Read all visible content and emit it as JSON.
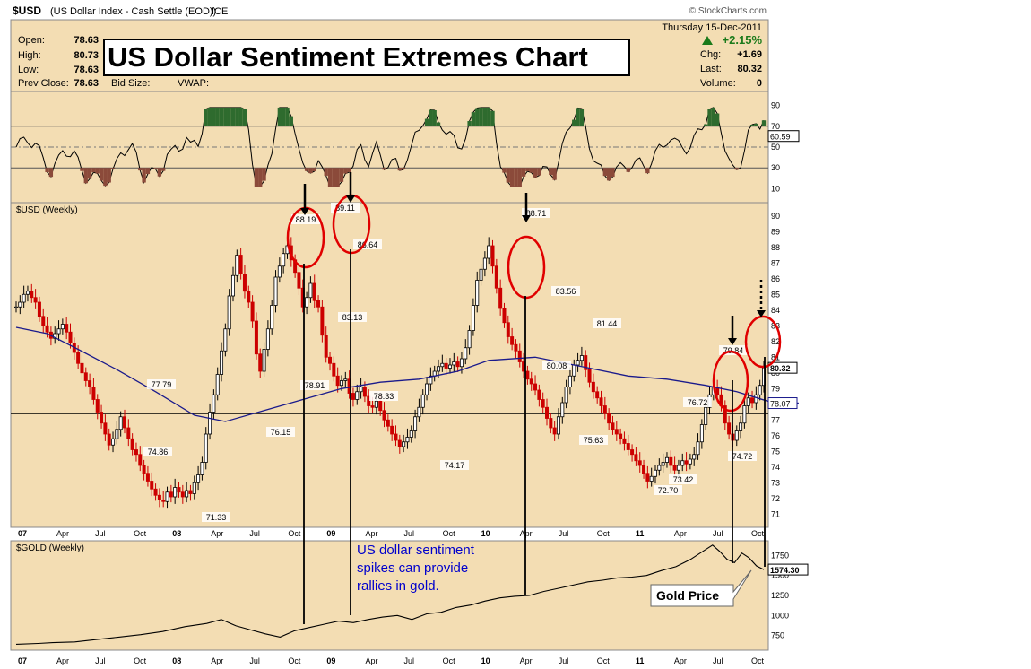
{
  "header": {
    "symbol": "$USD",
    "description": "(US Dollar Index - Cash Settle (EOD))",
    "exchange": "ICE",
    "source": "© StockCharts.com",
    "date": "Thursday 15-Dec-2011"
  },
  "quote": {
    "open_label": "Open:",
    "open": "78.63",
    "high_label": "High:",
    "high": "80.73",
    "low_label": "Low:",
    "low": "78.63",
    "prev_close_label": "Prev Close:",
    "prev_close": "78.63",
    "bid_size_label": "Bid Size:",
    "vwap_label": "VWAP:",
    "change_pct": "+2.15%",
    "chg_label": "Chg:",
    "chg": "+1.69",
    "last_label": "Last:",
    "last": "80.32",
    "volume_label": "Volume:",
    "volume": "0"
  },
  "title": "US Dollar Sentiment Extremes Chart",
  "annotations": {
    "sentiment_note": [
      "US dollar sentiment",
      "spikes can provide",
      "rallies in gold."
    ],
    "gold_callout": "Gold Price"
  },
  "colors": {
    "panel_bg": "#f3ddb3",
    "up_candle": "#000000",
    "down_candle": "#cc0000",
    "moving_average": "#1a1a8c",
    "circle": "#e00000",
    "note_text": "#0000cc",
    "positive": "#1a7a1a"
  },
  "chart_data": {
    "type": "candlestick",
    "time_axis": {
      "labels": [
        "07",
        "Apr",
        "Jul",
        "Oct",
        "08",
        "Apr",
        "Jul",
        "Oct",
        "09",
        "Apr",
        "Jul",
        "Oct",
        "10",
        "Apr",
        "Jul",
        "Oct",
        "11",
        "Apr",
        "Jul",
        "Oct"
      ],
      "bold_labels": [
        "07",
        "08",
        "09",
        "10",
        "11"
      ]
    },
    "indicator_panel": {
      "yticks": [
        10,
        30,
        50,
        70,
        90
      ],
      "ylim": [
        0,
        100
      ],
      "overbought": 70,
      "oversold": 30,
      "last_value": "60.59"
    },
    "price_panel": {
      "label": "$USD (Weekly)",
      "yticks": [
        71,
        72,
        73,
        74,
        75,
        76,
        77,
        78,
        79,
        80,
        81,
        82,
        83,
        84,
        85,
        86,
        87,
        88,
        89,
        90
      ],
      "ylim": [
        70.5,
        90.5
      ],
      "reference_line": 77.4,
      "last_price": "80.32",
      "ma_last": "78.07",
      "labeled_points": [
        {
          "date": "2007-10",
          "value": "77.79"
        },
        {
          "date": "2007-12",
          "value": "74.86"
        },
        {
          "date": "2008-03",
          "value": "71.33"
        },
        {
          "date": "2008-08",
          "value": "76.15"
        },
        {
          "date": "2008-11",
          "value": "88.19"
        },
        {
          "date": "2008-12",
          "value": "78.91"
        },
        {
          "date": "2009-03",
          "value": "89.11"
        },
        {
          "date": "2009-03",
          "value": "83.13"
        },
        {
          "date": "2009-04",
          "value": "86.64"
        },
        {
          "date": "2009-05",
          "value": "78.33"
        },
        {
          "date": "2009-11",
          "value": "74.17"
        },
        {
          "date": "2010-06",
          "value": "88.71"
        },
        {
          "date": "2010-07",
          "value": "83.56"
        },
        {
          "date": "2010-08",
          "value": "80.08"
        },
        {
          "date": "2010-10",
          "value": "75.63"
        },
        {
          "date": "2011-01",
          "value": "81.44"
        },
        {
          "date": "2011-05",
          "value": "72.70"
        },
        {
          "date": "2011-06",
          "value": "76.72"
        },
        {
          "date": "2011-08",
          "value": "73.42"
        },
        {
          "date": "2011-10",
          "value": "79.84"
        },
        {
          "date": "2011-10",
          "value": "74.72"
        }
      ],
      "closes": [
        84.2,
        84.5,
        85,
        85.2,
        84.8,
        84.5,
        83.6,
        83,
        82.6,
        82.2,
        82.5,
        82.8,
        83.1,
        82.6,
        81.9,
        81.3,
        80.6,
        80,
        79.5,
        79.1,
        78.3,
        77.5,
        76.8,
        76.1,
        75.4,
        75.8,
        76.4,
        77.2,
        76.5,
        75.8,
        75.1,
        74.8,
        74.1,
        73.6,
        73.1,
        72.6,
        72.2,
        71.9,
        71.8,
        72.4,
        72.1,
        72.7,
        72.4,
        72.1,
        72.5,
        72.3,
        73,
        73.5,
        74.3,
        76.1,
        77.5,
        78.6,
        79.9,
        81.4,
        82.8,
        84.9,
        86.2,
        87.5,
        86.3,
        85.2,
        84.5,
        83.3,
        81.2,
        80.1,
        81.5,
        82.8,
        84.3,
        86.1,
        86.8,
        87.6,
        88.1,
        87.2,
        86.4,
        85.4,
        84.2,
        84.8,
        85.7,
        84.6,
        84.2,
        82.4,
        81,
        80.6,
        79.8,
        79.2,
        79.5,
        79.6,
        78.7,
        78.3,
        78.8,
        79.1,
        78.5,
        77.9,
        77.8,
        78.2,
        77.6,
        77,
        76.6,
        76.1,
        75.7,
        75.3,
        75.6,
        75.9,
        76.3,
        77.2,
        77.8,
        78.6,
        79.3,
        79.8,
        80.1,
        80.4,
        80.6,
        80.3,
        80.5,
        80.7,
        80.4,
        80.9,
        81.6,
        82.7,
        84.3,
        85.9,
        86.6,
        87.3,
        88.1,
        86.8,
        85.4,
        84.1,
        83.2,
        82.3,
        81.8,
        81.4,
        80.7,
        80.1,
        79.6,
        79.3,
        78.9,
        78.3,
        77.8,
        77.1,
        76.5,
        76.1,
        77.2,
        78.1,
        79.1,
        79.8,
        80.5,
        80.8,
        81.1,
        80.2,
        79.4,
        78.8,
        78.4,
        77.9,
        77.4,
        76.8,
        76.4,
        76.1,
        75.8,
        75.5,
        75.1,
        74.8,
        74.4,
        74.1,
        73.6,
        73.1,
        73.4,
        73.8,
        74.1,
        74.3,
        74.6,
        74.1,
        73.8,
        74.1,
        74.4,
        74.2,
        74.5,
        74.8,
        75.6,
        76.7,
        77.8,
        78.6,
        79.1,
        78.6,
        77.9,
        76.8,
        76.1,
        75.7,
        76.3,
        76.8,
        77.9,
        78.4,
        78.1,
        78.6,
        79.2,
        80.32
      ],
      "moving_average": [
        [
          0,
          82.9
        ],
        [
          8,
          82.5
        ],
        [
          16,
          81.5
        ],
        [
          26,
          80.2
        ],
        [
          36,
          78.8
        ],
        [
          46,
          77.3
        ],
        [
          54,
          76.9
        ],
        [
          64,
          77.6
        ],
        [
          74,
          78.3
        ],
        [
          84,
          79.0
        ],
        [
          94,
          79.4
        ],
        [
          104,
          79.6
        ],
        [
          114,
          80.1
        ],
        [
          122,
          80.8
        ],
        [
          134,
          81.0
        ],
        [
          146,
          80.4
        ],
        [
          158,
          79.8
        ],
        [
          168,
          79.6
        ],
        [
          178,
          79.2
        ],
        [
          186,
          78.8
        ],
        [
          194,
          78.2
        ],
        [
          202,
          78.07
        ]
      ]
    },
    "gold_panel": {
      "label": "$GOLD (Weekly)",
      "yticks": [
        750,
        1000,
        1250,
        1500,
        1750
      ],
      "ylim": [
        600,
        1900
      ],
      "last_value": "1574.30",
      "series": [
        [
          0,
          640
        ],
        [
          6,
          650
        ],
        [
          10,
          660
        ],
        [
          16,
          670
        ],
        [
          22,
          700
        ],
        [
          28,
          730
        ],
        [
          34,
          760
        ],
        [
          40,
          800
        ],
        [
          46,
          860
        ],
        [
          52,
          900
        ],
        [
          56,
          950
        ],
        [
          60,
          870
        ],
        [
          64,
          820
        ],
        [
          68,
          770
        ],
        [
          72,
          730
        ],
        [
          76,
          810
        ],
        [
          80,
          850
        ],
        [
          84,
          890
        ],
        [
          88,
          930
        ],
        [
          92,
          910
        ],
        [
          96,
          950
        ],
        [
          100,
          980
        ],
        [
          104,
          1000
        ],
        [
          108,
          950
        ],
        [
          112,
          1020
        ],
        [
          116,
          1040
        ],
        [
          120,
          1100
        ],
        [
          124,
          1130
        ],
        [
          128,
          1180
        ],
        [
          132,
          1220
        ],
        [
          136,
          1240
        ],
        [
          140,
          1250
        ],
        [
          144,
          1300
        ],
        [
          148,
          1340
        ],
        [
          152,
          1380
        ],
        [
          156,
          1420
        ],
        [
          160,
          1440
        ],
        [
          164,
          1470
        ],
        [
          168,
          1480
        ],
        [
          172,
          1500
        ],
        [
          176,
          1560
        ],
        [
          180,
          1610
        ],
        [
          184,
          1700
        ],
        [
          188,
          1820
        ],
        [
          190,
          1880
        ],
        [
          192,
          1800
        ],
        [
          194,
          1700
        ],
        [
          196,
          1660
        ],
        [
          198,
          1780
        ],
        [
          200,
          1720
        ],
        [
          202,
          1620
        ],
        [
          204,
          1574
        ]
      ]
    },
    "spike_markers": [
      {
        "week_index": 70,
        "value": "88.19"
      },
      {
        "week_index": 84,
        "value": "89.11"
      },
      {
        "week_index": 126,
        "value": "88.71"
      },
      {
        "week_index": 193,
        "value": "79.84"
      },
      {
        "week_index": 205,
        "value": "80.32"
      }
    ]
  }
}
